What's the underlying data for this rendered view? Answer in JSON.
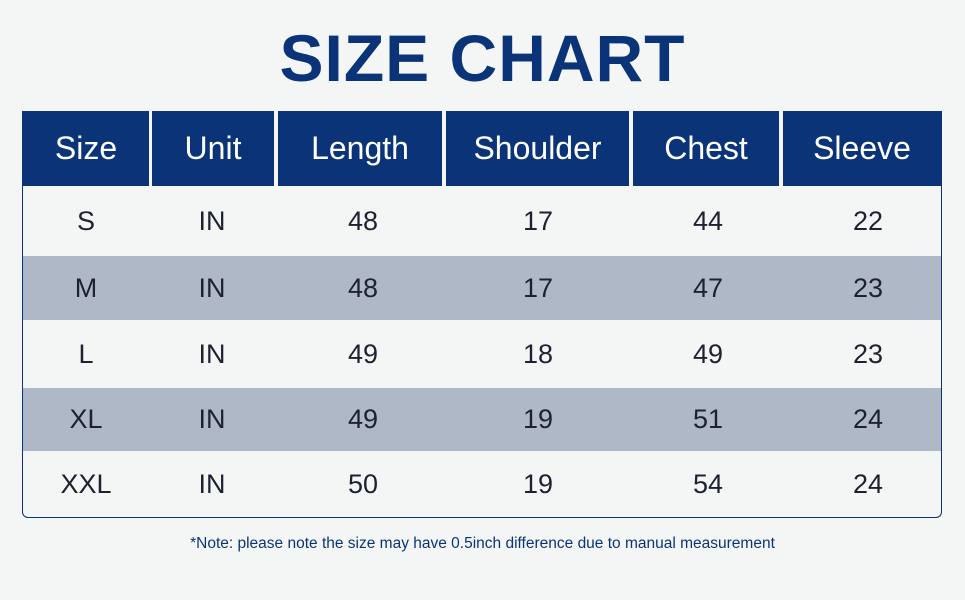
{
  "title": "SIZE CHART",
  "table": {
    "headers": [
      "Size",
      "Unit",
      "Length",
      "Shoulder",
      "Chest",
      "Sleeve"
    ],
    "rows": [
      [
        "S",
        "IN",
        "48",
        "17",
        "44",
        "22"
      ],
      [
        "M",
        "IN",
        "48",
        "17",
        "47",
        "23"
      ],
      [
        "L",
        "IN",
        "49",
        "18",
        "49",
        "23"
      ],
      [
        "XL",
        "IN",
        "49",
        "19",
        "51",
        "24"
      ],
      [
        "XXL",
        "IN",
        "50",
        "19",
        "54",
        "24"
      ]
    ]
  },
  "note": "*Note: please note the size may have 0.5inch difference due to manual measurement",
  "colors": {
    "header_bg": "#0b3478",
    "alt_row": "#aeb8c6",
    "background": "#f4f6f6",
    "text": "#1d2230"
  }
}
